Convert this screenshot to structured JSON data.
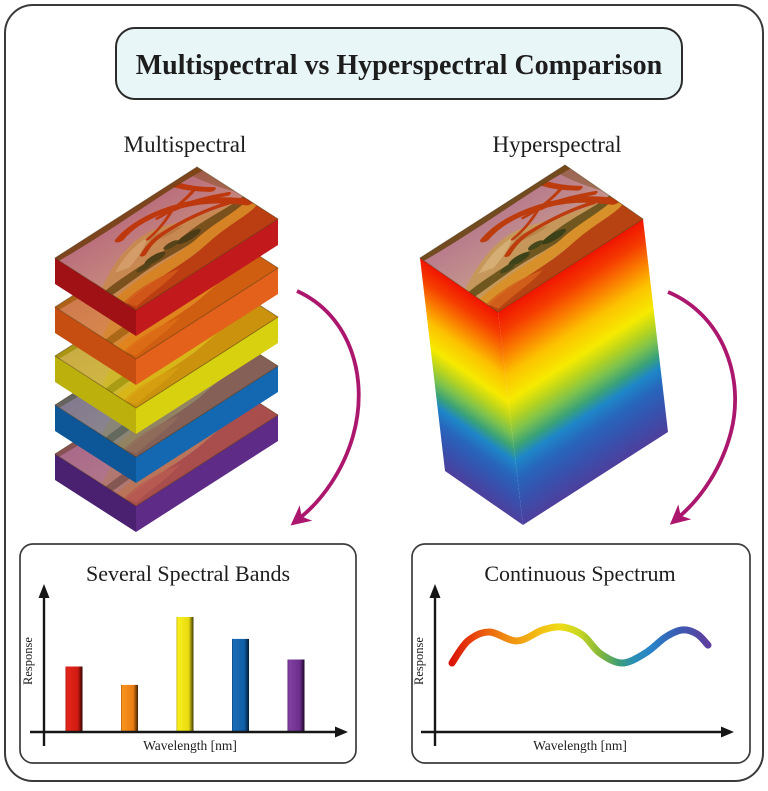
{
  "title": "Multispectral vs Hyperspectral Comparison",
  "title_box_fill": "#e9f6f8",
  "arrow_color": "#ac176e",
  "sections": {
    "multispectral": {
      "label": "Multispectral",
      "description": "stack of discrete band layers",
      "layers": [
        {
          "name": "red band",
          "side_right": "#c2191c",
          "side_left": "#a01115",
          "tint": "#cc2014",
          "tint_opacity": 0.12
        },
        {
          "name": "orange band",
          "side_right": "#e4611b",
          "side_left": "#c74e11",
          "tint": "#e87a10",
          "tint_opacity": 0.5
        },
        {
          "name": "yellow band",
          "side_right": "#d8d110",
          "side_left": "#bcb10c",
          "tint": "#d8d40a",
          "tint_opacity": 0.55
        },
        {
          "name": "blue band",
          "side_right": "#1467b1",
          "side_left": "#0d5697",
          "tint": "#5a7890",
          "tint_opacity": 0.55
        },
        {
          "name": "purple band",
          "side_right": "#5e2b86",
          "side_left": "#4a2070",
          "tint": "#9c5888",
          "tint_opacity": 0.5
        }
      ]
    },
    "hyperspectral": {
      "label": "Hyperspectral",
      "description": "continuous spectral cube",
      "gradient": [
        "#f01400",
        "#fa7e00",
        "#f6ea00",
        "#7cc24e",
        "#1e86c8",
        "#3652ae",
        "#4e3f9c"
      ]
    }
  },
  "chart_data": [
    {
      "type": "bar",
      "title": "Several Spectral Bands",
      "xlabel": "Wavelength [nm]",
      "ylabel": "Response",
      "categories": [
        "red",
        "orange",
        "yellow",
        "blue",
        "purple"
      ],
      "values": [
        0.57,
        0.41,
        1.0,
        0.81,
        0.63
      ],
      "bar_colors": [
        "#d21c13",
        "#f08618",
        "#f2e515",
        "#1565b0",
        "#76339c"
      ],
      "ylim": [
        0,
        1.05
      ],
      "grid": false,
      "axes_style": "arrow-tipped, no ticks"
    },
    {
      "type": "line",
      "title": "Continuous Spectrum",
      "xlabel": "Wavelength [nm]",
      "ylabel": "Response",
      "x": [
        0,
        0.062,
        0.145,
        0.254,
        0.355,
        0.434,
        0.512,
        0.578,
        0.664,
        0.754,
        0.836,
        0.902,
        0.957,
        1.0
      ],
      "y": [
        0.5,
        0.66,
        0.725,
        0.66,
        0.74,
        0.76,
        0.7,
        0.57,
        0.5,
        0.57,
        0.69,
        0.74,
        0.71,
        0.63
      ],
      "line_gradient": [
        "#db1508",
        "#ef8511",
        "#f0dc16",
        "#83b63c",
        "#2b8fb4",
        "#2883c8",
        "#5e3f9e"
      ],
      "grid": false,
      "axes_style": "arrow-tipped, no ticks"
    }
  ]
}
